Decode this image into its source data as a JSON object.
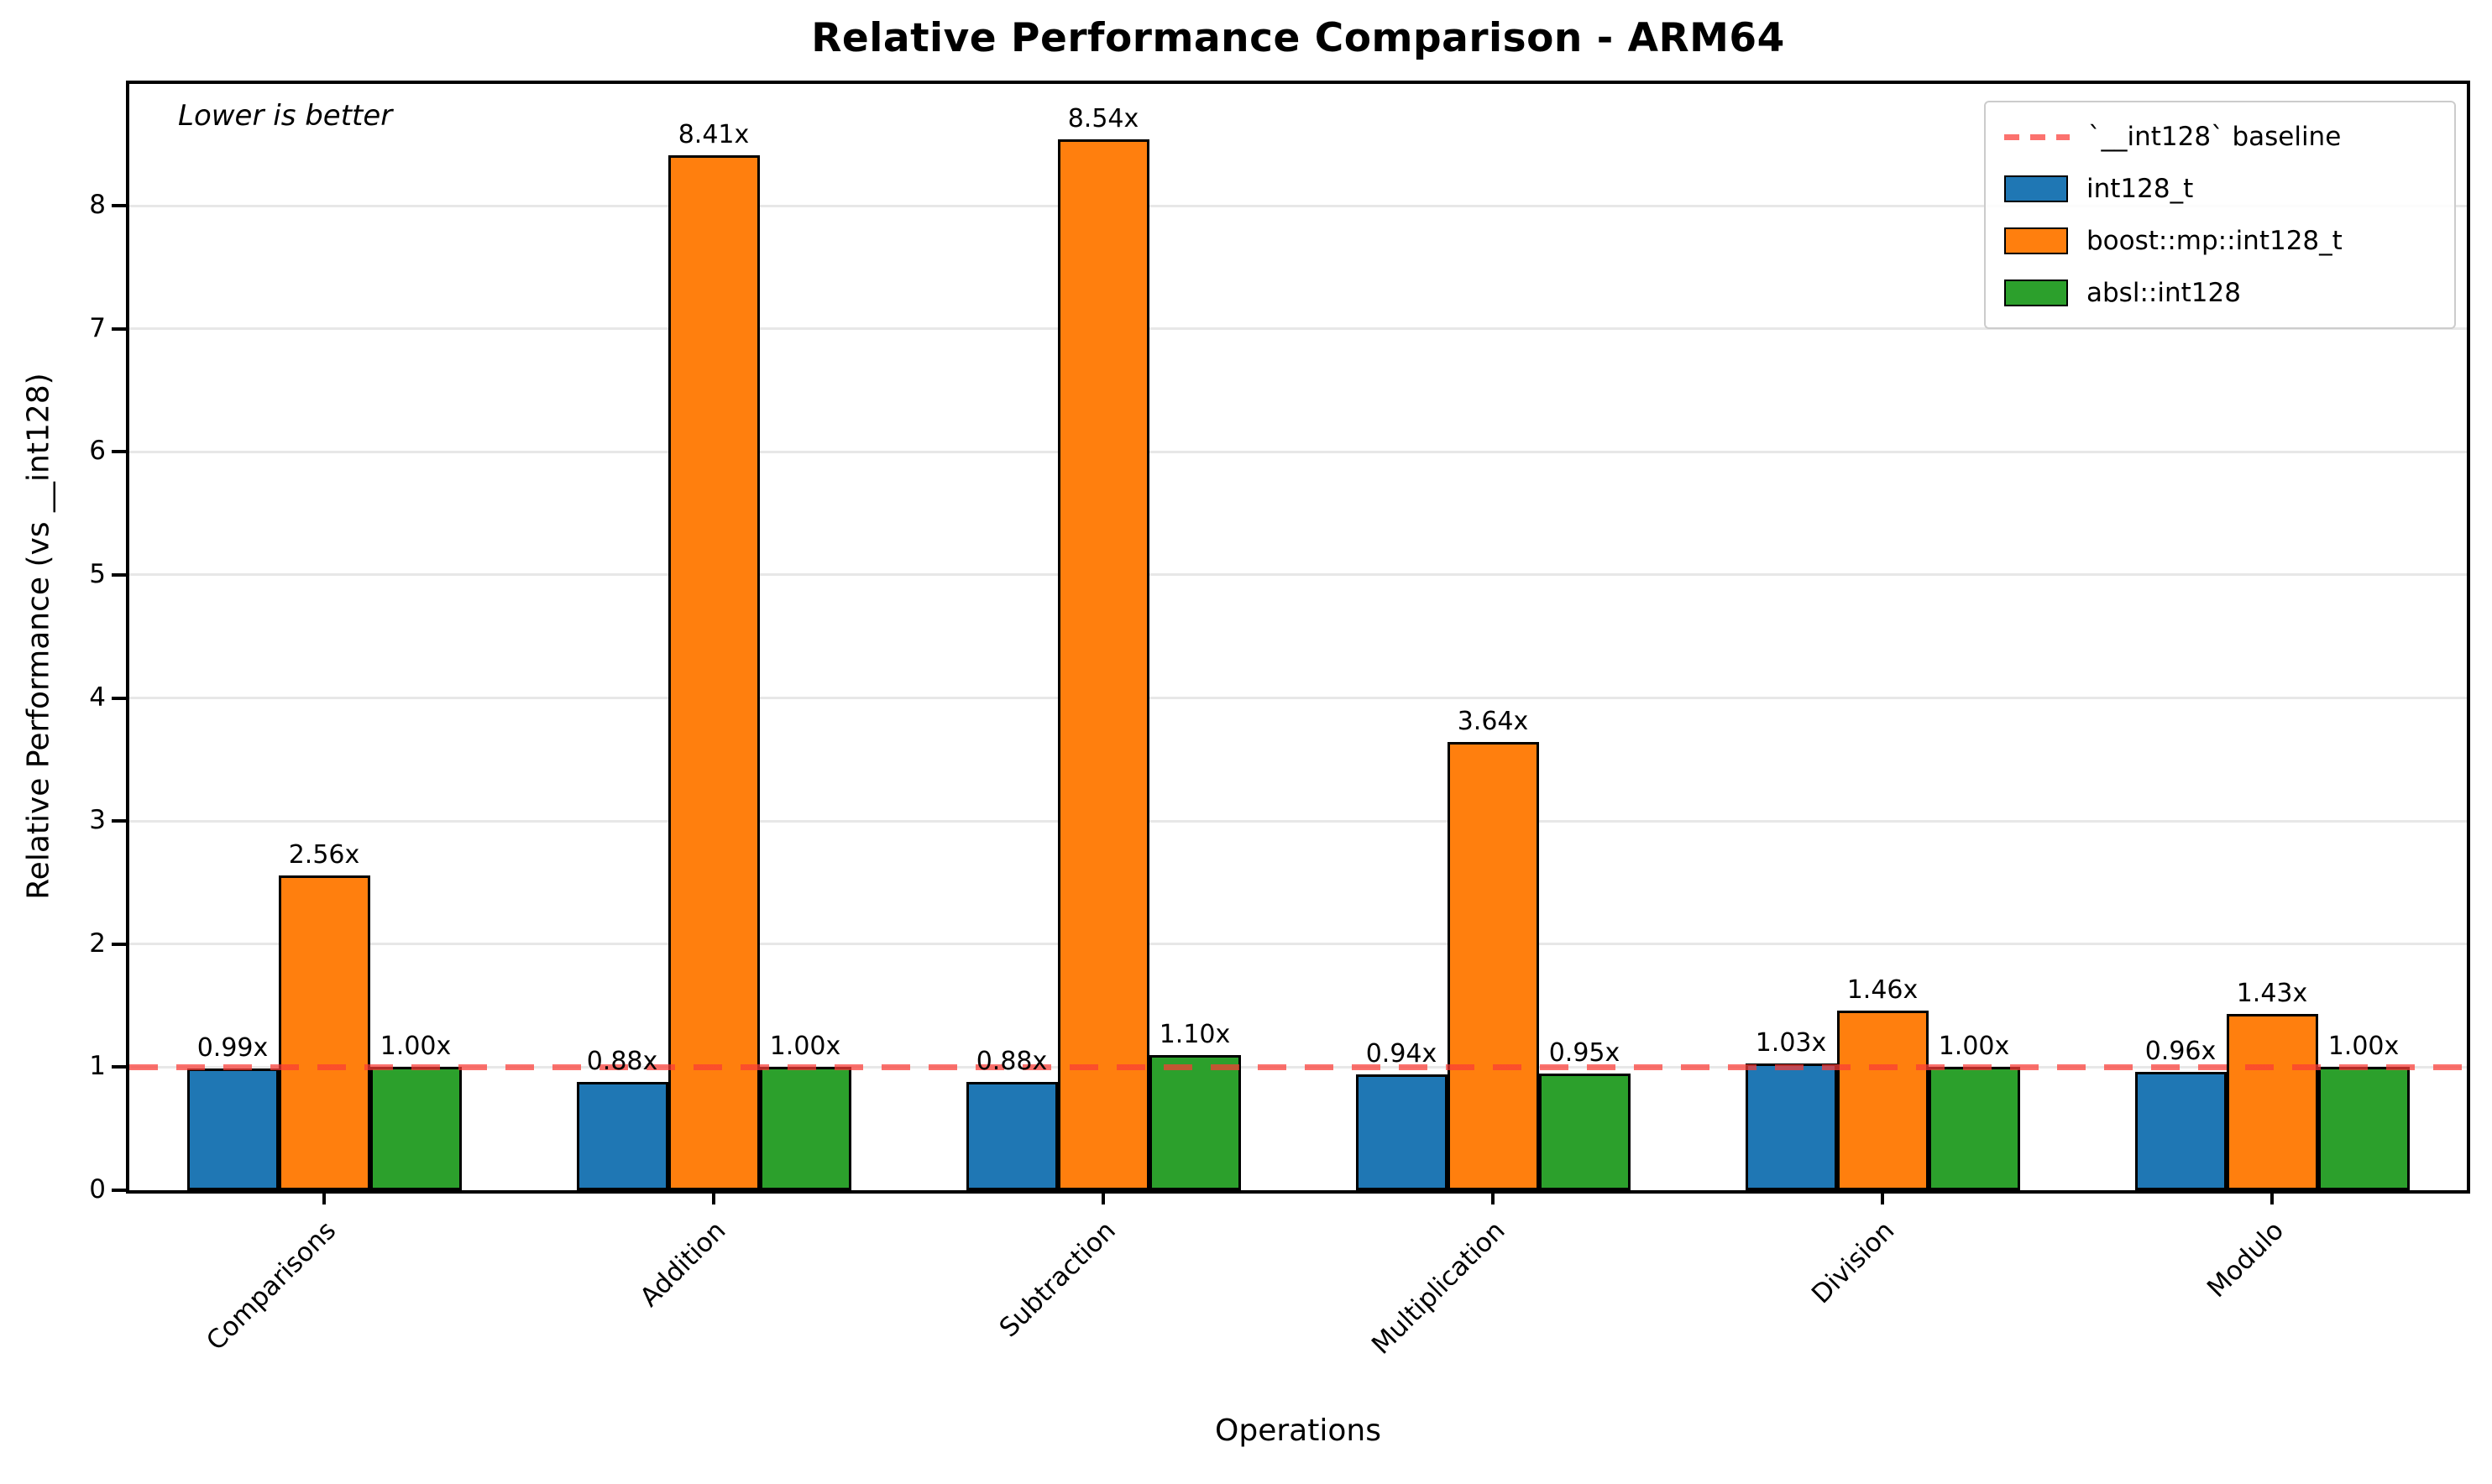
{
  "title": "Relative Performance Comparison - ARM64",
  "annotation": "Lower is better",
  "axes": {
    "x_label": "Operations",
    "y_label": "Relative Performance (vs __int128)",
    "y_ticks": [
      "0",
      "1",
      "2",
      "3",
      "4",
      "5",
      "6",
      "7",
      "8"
    ],
    "grid": "horizontal"
  },
  "legend": {
    "position": "top-right",
    "items": [
      {
        "label": "`__int128` baseline",
        "type": "dashed-line",
        "color": "#fa3c36"
      },
      {
        "label": "int128_t",
        "type": "patch",
        "color": "#1f77b4"
      },
      {
        "label": "boost::mp::int128_t",
        "type": "patch",
        "color": "#ff7f0e"
      },
      {
        "label": "absl::int128",
        "type": "patch",
        "color": "#2ca02c"
      }
    ]
  },
  "chart_data": {
    "type": "bar",
    "categories": [
      "Comparisons",
      "Addition",
      "Subtraction",
      "Multiplication",
      "Division",
      "Modulo"
    ],
    "series": [
      {
        "name": "int128_t",
        "color": "#1f77b4",
        "values": [
          0.99,
          0.88,
          0.88,
          0.94,
          1.03,
          0.96
        ],
        "labels": [
          "0.99x",
          "0.88x",
          "0.88x",
          "0.94x",
          "1.03x",
          "0.96x"
        ]
      },
      {
        "name": "boost::mp::int128_t",
        "color": "#ff7f0e",
        "values": [
          2.56,
          8.41,
          8.54,
          3.64,
          1.46,
          1.43
        ],
        "labels": [
          "2.56x",
          "8.41x",
          "8.54x",
          "3.64x",
          "1.46x",
          "1.43x"
        ]
      },
      {
        "name": "absl::int128",
        "color": "#2ca02c",
        "values": [
          1.0,
          1.0,
          1.1,
          0.95,
          1.0,
          1.0
        ],
        "labels": [
          "1.00x",
          "1.00x",
          "1.10x",
          "0.95x",
          "1.00x",
          "1.00x"
        ]
      }
    ],
    "baseline": {
      "value": 1.0,
      "color": "#fa3c36",
      "style": "dashed"
    },
    "title": "Relative Performance Comparison - ARM64",
    "xlabel": "Operations",
    "ylabel": "Relative Performance (vs __int128)",
    "ylim": [
      0,
      8.99
    ],
    "legend_position": "upper right",
    "grid": true
  }
}
